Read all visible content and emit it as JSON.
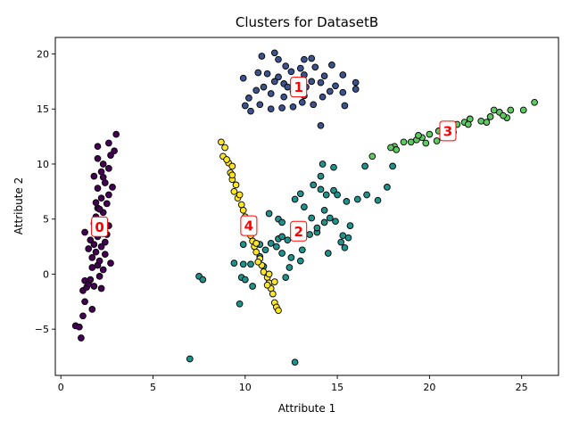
{
  "chart_data": {
    "type": "scatter",
    "title": "Clusters for DatasetB",
    "xlabel": "Attribute 1",
    "ylabel": "Attribute 2",
    "xlim": [
      -0.3,
      27
    ],
    "ylim": [
      -9.2,
      21.5
    ],
    "xticks": [
      0,
      5,
      10,
      15,
      20,
      25
    ],
    "yticks": [
      -5,
      0,
      5,
      10,
      15,
      20
    ],
    "grid": false,
    "colors": {
      "0": "#440154",
      "1": "#3b528b",
      "2": "#21918c",
      "3": "#5ec962",
      "4": "#fde725",
      "label_edge": "#ff0000",
      "label_text": "#ff0000"
    },
    "cluster_labels": [
      {
        "text": "0",
        "x": 2.1,
        "y": 4.3
      },
      {
        "text": "1",
        "x": 12.9,
        "y": 17.0
      },
      {
        "text": "2",
        "x": 12.9,
        "y": 3.9
      },
      {
        "text": "3",
        "x": 21.0,
        "y": 13.0
      },
      {
        "text": "4",
        "x": 10.2,
        "y": 4.4
      }
    ],
    "series": [
      {
        "cluster": 0,
        "points": [
          [
            0.8,
            -4.7
          ],
          [
            1.0,
            -4.8
          ],
          [
            1.1,
            -5.8
          ],
          [
            1.2,
            -3.8
          ],
          [
            1.3,
            -2.5
          ],
          [
            1.7,
            -3.2
          ],
          [
            1.2,
            -1.5
          ],
          [
            1.4,
            -1.2
          ],
          [
            1.3,
            -0.6
          ],
          [
            1.5,
            -0.9
          ],
          [
            1.6,
            -0.5
          ],
          [
            1.8,
            -1.1
          ],
          [
            2.2,
            -1.3
          ],
          [
            2.0,
            0.8
          ],
          [
            2.3,
            0.4
          ],
          [
            2.1,
            1.2
          ],
          [
            1.7,
            1.5
          ],
          [
            1.9,
            2.0
          ],
          [
            2.4,
            1.8
          ],
          [
            1.8,
            2.7
          ],
          [
            2.2,
            2.5
          ],
          [
            1.6,
            3.1
          ],
          [
            2.0,
            3.4
          ],
          [
            1.3,
            3.8
          ],
          [
            2.5,
            3.6
          ],
          [
            1.8,
            4.6
          ],
          [
            2.2,
            4.0
          ],
          [
            2.6,
            4.4
          ],
          [
            1.9,
            5.2
          ],
          [
            2.3,
            5.6
          ],
          [
            2.0,
            6.0
          ],
          [
            2.5,
            6.4
          ],
          [
            2.2,
            6.9
          ],
          [
            2.6,
            7.2
          ],
          [
            2.8,
            7.9
          ],
          [
            2.0,
            7.8
          ],
          [
            2.4,
            8.3
          ],
          [
            1.8,
            8.9
          ],
          [
            2.2,
            9.3
          ],
          [
            2.6,
            9.6
          ],
          [
            2.3,
            10.0
          ],
          [
            2.0,
            10.5
          ],
          [
            2.7,
            10.8
          ],
          [
            2.9,
            11.2
          ],
          [
            2.6,
            11.9
          ],
          [
            2.0,
            11.6
          ],
          [
            3.0,
            12.7
          ],
          [
            2.3,
            8.8
          ],
          [
            1.9,
            6.5
          ],
          [
            2.4,
            2.9
          ],
          [
            1.7,
            0.6
          ],
          [
            2.1,
            -0.2
          ],
          [
            1.5,
            2.3
          ],
          [
            2.7,
            1.0
          ],
          [
            2.1,
            5.9
          ]
        ]
      },
      {
        "cluster": 1,
        "points": [
          [
            10.9,
            19.8
          ],
          [
            11.6,
            20.1
          ],
          [
            11.8,
            19.5
          ],
          [
            13.2,
            19.5
          ],
          [
            13.6,
            19.6
          ],
          [
            14.7,
            19.0
          ],
          [
            12.2,
            18.9
          ],
          [
            13.8,
            18.8
          ],
          [
            10.7,
            18.3
          ],
          [
            11.2,
            18.2
          ],
          [
            11.8,
            17.9
          ],
          [
            12.5,
            18.4
          ],
          [
            13.2,
            18.1
          ],
          [
            14.3,
            18.0
          ],
          [
            15.3,
            18.1
          ],
          [
            9.9,
            17.8
          ],
          [
            11.6,
            17.5
          ],
          [
            12.1,
            17.3
          ],
          [
            12.8,
            17.6
          ],
          [
            13.6,
            17.5
          ],
          [
            14.1,
            17.4
          ],
          [
            14.9,
            17.1
          ],
          [
            16.0,
            17.4
          ],
          [
            16.0,
            16.8
          ],
          [
            10.6,
            16.7
          ],
          [
            11.4,
            16.4
          ],
          [
            12.1,
            16.1
          ],
          [
            12.6,
            16.6
          ],
          [
            13.2,
            16.2
          ],
          [
            14.2,
            16.1
          ],
          [
            15.3,
            16.5
          ],
          [
            10.2,
            16.0
          ],
          [
            10.0,
            15.3
          ],
          [
            10.8,
            15.4
          ],
          [
            11.4,
            15.0
          ],
          [
            12.0,
            15.1
          ],
          [
            12.6,
            15.2
          ],
          [
            13.1,
            15.6
          ],
          [
            13.7,
            15.4
          ],
          [
            15.4,
            15.3
          ],
          [
            10.3,
            14.8
          ],
          [
            14.1,
            13.5
          ],
          [
            12.3,
            17.0
          ],
          [
            13.3,
            17.0
          ],
          [
            11.0,
            17.0
          ],
          [
            14.6,
            16.6
          ],
          [
            12.7,
            16.9
          ],
          [
            13.0,
            18.7
          ]
        ]
      },
      {
        "cluster": 2,
        "points": [
          [
            7.0,
            -7.7
          ],
          [
            12.7,
            -8.0
          ],
          [
            7.5,
            -0.2
          ],
          [
            7.7,
            -0.5
          ],
          [
            9.4,
            1.0
          ],
          [
            9.7,
            -2.7
          ],
          [
            9.8,
            -0.3
          ],
          [
            10.0,
            -0.5
          ],
          [
            10.4,
            -1.1
          ],
          [
            9.9,
            0.9
          ],
          [
            10.3,
            0.9
          ],
          [
            10.8,
            1.6
          ],
          [
            11.1,
            2.2
          ],
          [
            11.4,
            2.8
          ],
          [
            11.8,
            3.2
          ],
          [
            12.3,
            3.1
          ],
          [
            12.0,
            1.9
          ],
          [
            12.5,
            1.5
          ],
          [
            12.2,
            -0.3
          ],
          [
            12.4,
            0.6
          ],
          [
            13.0,
            1.2
          ],
          [
            13.1,
            2.2
          ],
          [
            13.5,
            3.6
          ],
          [
            13.9,
            3.8
          ],
          [
            14.3,
            4.7
          ],
          [
            14.6,
            5.1
          ],
          [
            14.9,
            4.8
          ],
          [
            15.3,
            3.5
          ],
          [
            15.6,
            3.3
          ],
          [
            15.4,
            2.4
          ],
          [
            15.2,
            2.9
          ],
          [
            14.5,
            1.9
          ],
          [
            14.1,
            7.7
          ],
          [
            14.4,
            7.2
          ],
          [
            14.8,
            7.6
          ],
          [
            15.0,
            7.2
          ],
          [
            15.5,
            6.6
          ],
          [
            16.1,
            6.8
          ],
          [
            16.6,
            7.2
          ],
          [
            17.2,
            6.7
          ],
          [
            17.7,
            7.9
          ],
          [
            13.7,
            8.1
          ],
          [
            14.1,
            8.9
          ],
          [
            14.2,
            10.0
          ],
          [
            14.8,
            9.7
          ],
          [
            16.5,
            9.8
          ],
          [
            18.0,
            9.8
          ],
          [
            11.3,
            5.5
          ],
          [
            11.8,
            5.0
          ],
          [
            12.7,
            6.8
          ],
          [
            13.2,
            6.1
          ],
          [
            13.9,
            4.2
          ],
          [
            12.0,
            3.4
          ],
          [
            11.7,
            2.5
          ],
          [
            10.8,
            2.7
          ],
          [
            9.9,
            2.7
          ],
          [
            11.0,
            0.7
          ],
          [
            12.0,
            4.7
          ],
          [
            13.6,
            5.1
          ],
          [
            14.3,
            5.8
          ],
          [
            15.7,
            4.4
          ],
          [
            13.0,
            7.3
          ]
        ]
      },
      {
        "cluster": 3,
        "points": [
          [
            25.7,
            15.6
          ],
          [
            25.1,
            14.9
          ],
          [
            24.4,
            14.9
          ],
          [
            24.2,
            14.2
          ],
          [
            23.8,
            14.7
          ],
          [
            23.5,
            14.9
          ],
          [
            23.3,
            14.3
          ],
          [
            22.8,
            13.9
          ],
          [
            22.2,
            14.1
          ],
          [
            21.9,
            13.8
          ],
          [
            21.5,
            13.6
          ],
          [
            21.0,
            13.2
          ],
          [
            20.5,
            13.0
          ],
          [
            20.0,
            12.7
          ],
          [
            19.6,
            12.4
          ],
          [
            19.3,
            12.2
          ],
          [
            19.0,
            12.0
          ],
          [
            18.6,
            12.0
          ],
          [
            18.1,
            11.6
          ],
          [
            17.9,
            11.5
          ],
          [
            18.2,
            11.3
          ],
          [
            19.4,
            12.6
          ],
          [
            20.4,
            12.1
          ],
          [
            21.3,
            12.9
          ],
          [
            22.1,
            13.6
          ],
          [
            23.1,
            13.8
          ],
          [
            24.0,
            14.4
          ],
          [
            16.9,
            10.7
          ],
          [
            19.8,
            11.9
          ],
          [
            20.9,
            12.6
          ]
        ]
      },
      {
        "cluster": 4,
        "points": [
          [
            8.7,
            12.0
          ],
          [
            8.9,
            11.5
          ],
          [
            8.8,
            10.7
          ],
          [
            9.1,
            10.1
          ],
          [
            9.3,
            9.8
          ],
          [
            9.2,
            9.2
          ],
          [
            9.3,
            8.6
          ],
          [
            9.5,
            8.1
          ],
          [
            9.4,
            7.5
          ],
          [
            9.6,
            6.9
          ],
          [
            9.8,
            6.3
          ],
          [
            9.9,
            5.8
          ],
          [
            10.0,
            5.2
          ],
          [
            10.1,
            4.6
          ],
          [
            10.2,
            4.1
          ],
          [
            10.3,
            3.5
          ],
          [
            10.4,
            3.0
          ],
          [
            10.5,
            2.5
          ],
          [
            10.6,
            2.0
          ],
          [
            10.8,
            1.4
          ],
          [
            10.9,
            0.8
          ],
          [
            11.0,
            0.2
          ],
          [
            11.2,
            -0.3
          ],
          [
            11.3,
            -0.8
          ],
          [
            11.4,
            -1.3
          ],
          [
            11.5,
            -1.8
          ],
          [
            11.6,
            -2.6
          ],
          [
            11.7,
            -3.0
          ],
          [
            11.8,
            -3.3
          ],
          [
            11.6,
            -0.7
          ],
          [
            11.3,
            0.0
          ],
          [
            10.7,
            1.1
          ],
          [
            10.6,
            2.8
          ],
          [
            10.3,
            5.0
          ],
          [
            9.7,
            7.2
          ],
          [
            9.3,
            9.0
          ],
          [
            9.0,
            10.4
          ],
          [
            11.2,
            -1.0
          ]
        ]
      }
    ]
  }
}
